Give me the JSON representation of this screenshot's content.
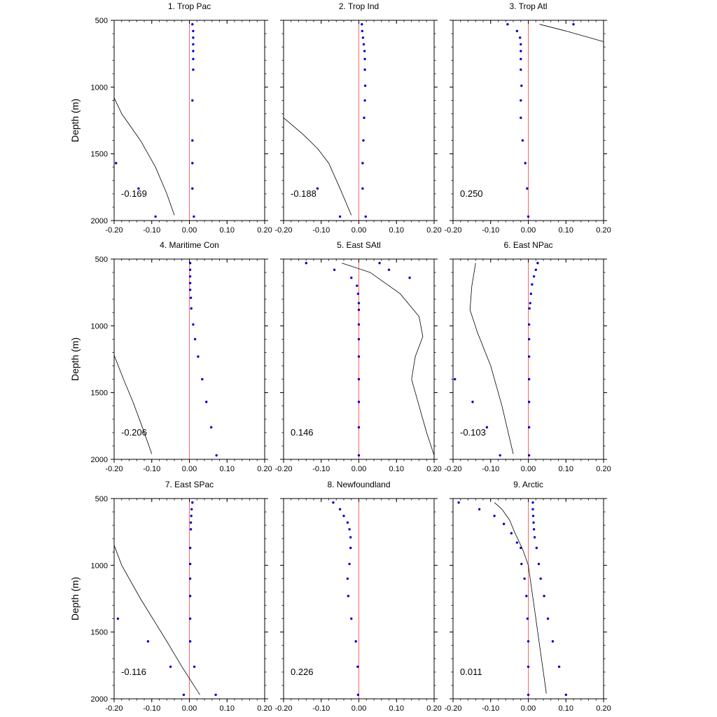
{
  "chart_data": {
    "type": "scatter",
    "ylabel": "Depth (m)",
    "xlim": [
      -0.2,
      0.2
    ],
    "ylim": [
      2000,
      500
    ],
    "y_reversed": true,
    "x_ticks": [
      -0.2,
      -0.1,
      0.0,
      0.1,
      0.2
    ],
    "x_tick_labels": [
      "-0.20",
      "-0.10",
      "0.00",
      "0.10",
      "0.20"
    ],
    "y_ticks": [
      500,
      1000,
      1500,
      2000
    ],
    "y_tick_labels": [
      "500",
      "1000",
      "1500",
      "2000"
    ],
    "grid": false,
    "legend": "none",
    "colors": {
      "points": "#0000cc",
      "zero_line": "#ff6666",
      "curve": "#000000",
      "frame": "#000000"
    },
    "panels": [
      {
        "title": "1. Trop Pac",
        "corr_label": "-0.169",
        "points": [
          [
            0.008,
            530
          ],
          [
            0.01,
            580
          ],
          [
            0.01,
            630
          ],
          [
            0.01,
            680
          ],
          [
            0.01,
            730
          ],
          [
            0.01,
            790
          ],
          [
            0.01,
            870
          ],
          [
            0.008,
            1100
          ],
          [
            0.008,
            1400
          ],
          [
            0.008,
            1570
          ],
          [
            0.008,
            1760
          ],
          [
            0.012,
            1970
          ],
          [
            -0.195,
            1570
          ],
          [
            -0.135,
            1760
          ],
          [
            -0.09,
            1970
          ]
        ],
        "curve": [
          [
            -0.2,
            1080
          ],
          [
            -0.18,
            1200
          ],
          [
            -0.13,
            1400
          ],
          [
            -0.09,
            1600
          ],
          [
            -0.06,
            1800
          ],
          [
            -0.04,
            1960
          ]
        ]
      },
      {
        "title": "2. Trop Ind",
        "corr_label": "-0.188",
        "points": [
          [
            0.008,
            530
          ],
          [
            0.009,
            580
          ],
          [
            0.011,
            630
          ],
          [
            0.013,
            680
          ],
          [
            0.015,
            730
          ],
          [
            0.016,
            790
          ],
          [
            0.016,
            870
          ],
          [
            0.017,
            990
          ],
          [
            0.016,
            1100
          ],
          [
            0.014,
            1230
          ],
          [
            0.012,
            1400
          ],
          [
            0.01,
            1570
          ],
          [
            0.01,
            1760
          ],
          [
            0.018,
            1970
          ],
          [
            -0.11,
            1760
          ],
          [
            -0.05,
            1970
          ]
        ],
        "curve": [
          [
            -0.2,
            1230
          ],
          [
            -0.15,
            1350
          ],
          [
            -0.11,
            1460
          ],
          [
            -0.08,
            1570
          ],
          [
            -0.05,
            1760
          ],
          [
            -0.02,
            1960
          ]
        ]
      },
      {
        "title": "3. Trop Atl",
        "corr_label": "0.250",
        "points": [
          [
            -0.055,
            530
          ],
          [
            -0.03,
            580
          ],
          [
            -0.022,
            630
          ],
          [
            -0.02,
            680
          ],
          [
            -0.02,
            730
          ],
          [
            -0.02,
            790
          ],
          [
            -0.02,
            870
          ],
          [
            -0.018,
            990
          ],
          [
            -0.02,
            1100
          ],
          [
            -0.02,
            1230
          ],
          [
            -0.015,
            1400
          ],
          [
            -0.008,
            1570
          ],
          [
            -0.003,
            1760
          ],
          [
            0.0,
            1970
          ],
          [
            0.12,
            530
          ]
        ],
        "curve": [
          [
            0.03,
            530
          ],
          [
            0.1,
            580
          ],
          [
            0.2,
            660
          ]
        ]
      },
      {
        "title": "4. Maritime Con",
        "corr_label": "-0.206",
        "points": [
          [
            0.002,
            530
          ],
          [
            0.002,
            580
          ],
          [
            0.002,
            630
          ],
          [
            0.002,
            680
          ],
          [
            0.002,
            730
          ],
          [
            0.004,
            790
          ],
          [
            0.005,
            870
          ],
          [
            0.01,
            990
          ],
          [
            0.015,
            1100
          ],
          [
            0.023,
            1230
          ],
          [
            0.034,
            1400
          ],
          [
            0.045,
            1570
          ],
          [
            0.058,
            1760
          ],
          [
            0.072,
            1970
          ]
        ],
        "curve": [
          [
            -0.2,
            1220
          ],
          [
            -0.175,
            1400
          ],
          [
            -0.15,
            1570
          ],
          [
            -0.125,
            1760
          ],
          [
            -0.1,
            1960
          ]
        ]
      },
      {
        "title": "5. East SAtl",
        "corr_label": "0.146",
        "points": [
          [
            -0.14,
            530
          ],
          [
            -0.065,
            580
          ],
          [
            -0.02,
            640
          ],
          [
            -0.005,
            700
          ],
          [
            -0.002,
            760
          ],
          [
            0.0,
            830
          ],
          [
            0.0,
            880
          ],
          [
            0.0,
            990
          ],
          [
            0.0,
            1100
          ],
          [
            0.0,
            1230
          ],
          [
            0.0,
            1400
          ],
          [
            0.0,
            1570
          ],
          [
            0.0,
            1760
          ],
          [
            0.0,
            1970
          ],
          [
            0.055,
            530
          ],
          [
            0.08,
            580
          ],
          [
            0.135,
            640
          ]
        ],
        "curve": [
          [
            -0.045,
            530
          ],
          [
            0.03,
            600
          ],
          [
            0.11,
            760
          ],
          [
            0.16,
            930
          ],
          [
            0.17,
            1080
          ],
          [
            0.15,
            1230
          ],
          [
            0.14,
            1400
          ],
          [
            0.16,
            1600
          ],
          [
            0.18,
            1800
          ],
          [
            0.2,
            1970
          ]
        ]
      },
      {
        "title": "6. East NPac",
        "corr_label": "-0.103",
        "points": [
          [
            0.025,
            530
          ],
          [
            0.02,
            580
          ],
          [
            0.015,
            630
          ],
          [
            0.01,
            690
          ],
          [
            0.007,
            760
          ],
          [
            0.005,
            830
          ],
          [
            0.003,
            870
          ],
          [
            0.002,
            990
          ],
          [
            0.002,
            1100
          ],
          [
            0.002,
            1230
          ],
          [
            0.002,
            1400
          ],
          [
            0.002,
            1570
          ],
          [
            0.002,
            1760
          ],
          [
            0.002,
            1970
          ],
          [
            -0.195,
            1400
          ],
          [
            -0.148,
            1570
          ],
          [
            -0.11,
            1760
          ],
          [
            -0.075,
            1970
          ]
        ],
        "curve": [
          [
            -0.14,
            530
          ],
          [
            -0.15,
            700
          ],
          [
            -0.155,
            880
          ],
          [
            -0.135,
            1050
          ],
          [
            -0.1,
            1300
          ],
          [
            -0.07,
            1600
          ],
          [
            -0.04,
            1960
          ]
        ]
      },
      {
        "title": "7. East SPac",
        "corr_label": "-0.116",
        "points": [
          [
            0.008,
            530
          ],
          [
            0.006,
            580
          ],
          [
            0.005,
            630
          ],
          [
            0.004,
            680
          ],
          [
            0.004,
            730
          ],
          [
            0.002,
            870
          ],
          [
            0.002,
            990
          ],
          [
            0.002,
            1100
          ],
          [
            0.002,
            1230
          ],
          [
            0.002,
            1400
          ],
          [
            0.002,
            1570
          ],
          [
            0.013,
            1760
          ],
          [
            0.07,
            1970
          ],
          [
            -0.19,
            1400
          ],
          [
            -0.11,
            1570
          ],
          [
            -0.05,
            1760
          ],
          [
            -0.015,
            1970
          ]
        ],
        "curve": [
          [
            -0.2,
            850
          ],
          [
            -0.18,
            1000
          ],
          [
            -0.13,
            1250
          ],
          [
            -0.06,
            1570
          ],
          [
            -0.02,
            1760
          ],
          [
            0.028,
            1970
          ]
        ]
      },
      {
        "title": "8. Newfoundland",
        "corr_label": "0.226",
        "points": [
          [
            -0.068,
            530
          ],
          [
            -0.05,
            580
          ],
          [
            -0.04,
            630
          ],
          [
            -0.03,
            680
          ],
          [
            -0.025,
            730
          ],
          [
            -0.022,
            790
          ],
          [
            -0.022,
            870
          ],
          [
            -0.025,
            990
          ],
          [
            -0.03,
            1100
          ],
          [
            -0.028,
            1230
          ],
          [
            -0.02,
            1400
          ],
          [
            -0.008,
            1570
          ],
          [
            -0.003,
            1760
          ],
          [
            -0.002,
            1970
          ]
        ],
        "curve": []
      },
      {
        "title": "9. Arctic",
        "corr_label": "0.011",
        "points": [
          [
            0.012,
            530
          ],
          [
            0.012,
            580
          ],
          [
            0.013,
            630
          ],
          [
            0.014,
            680
          ],
          [
            0.015,
            730
          ],
          [
            0.017,
            790
          ],
          [
            0.022,
            870
          ],
          [
            0.028,
            990
          ],
          [
            0.033,
            1100
          ],
          [
            0.042,
            1230
          ],
          [
            0.052,
            1400
          ],
          [
            0.065,
            1570
          ],
          [
            0.082,
            1760
          ],
          [
            0.1,
            1970
          ],
          [
            -0.185,
            530
          ],
          [
            -0.13,
            580
          ],
          [
            -0.09,
            630
          ],
          [
            -0.065,
            690
          ],
          [
            -0.045,
            760
          ],
          [
            -0.03,
            830
          ],
          [
            -0.02,
            870
          ],
          [
            -0.018,
            990
          ],
          [
            -0.01,
            1100
          ],
          [
            -0.005,
            1230
          ],
          [
            -0.002,
            1400
          ],
          [
            0.0,
            1570
          ],
          [
            0.0,
            1760
          ],
          [
            0.0,
            1970
          ]
        ],
        "curve": [
          [
            -0.09,
            530
          ],
          [
            -0.07,
            580
          ],
          [
            -0.05,
            660
          ],
          [
            -0.035,
            760
          ],
          [
            -0.015,
            880
          ],
          [
            0.0,
            1000
          ],
          [
            0.01,
            1200
          ],
          [
            0.02,
            1400
          ],
          [
            0.03,
            1600
          ],
          [
            0.04,
            1800
          ],
          [
            0.048,
            1960
          ]
        ]
      }
    ]
  }
}
